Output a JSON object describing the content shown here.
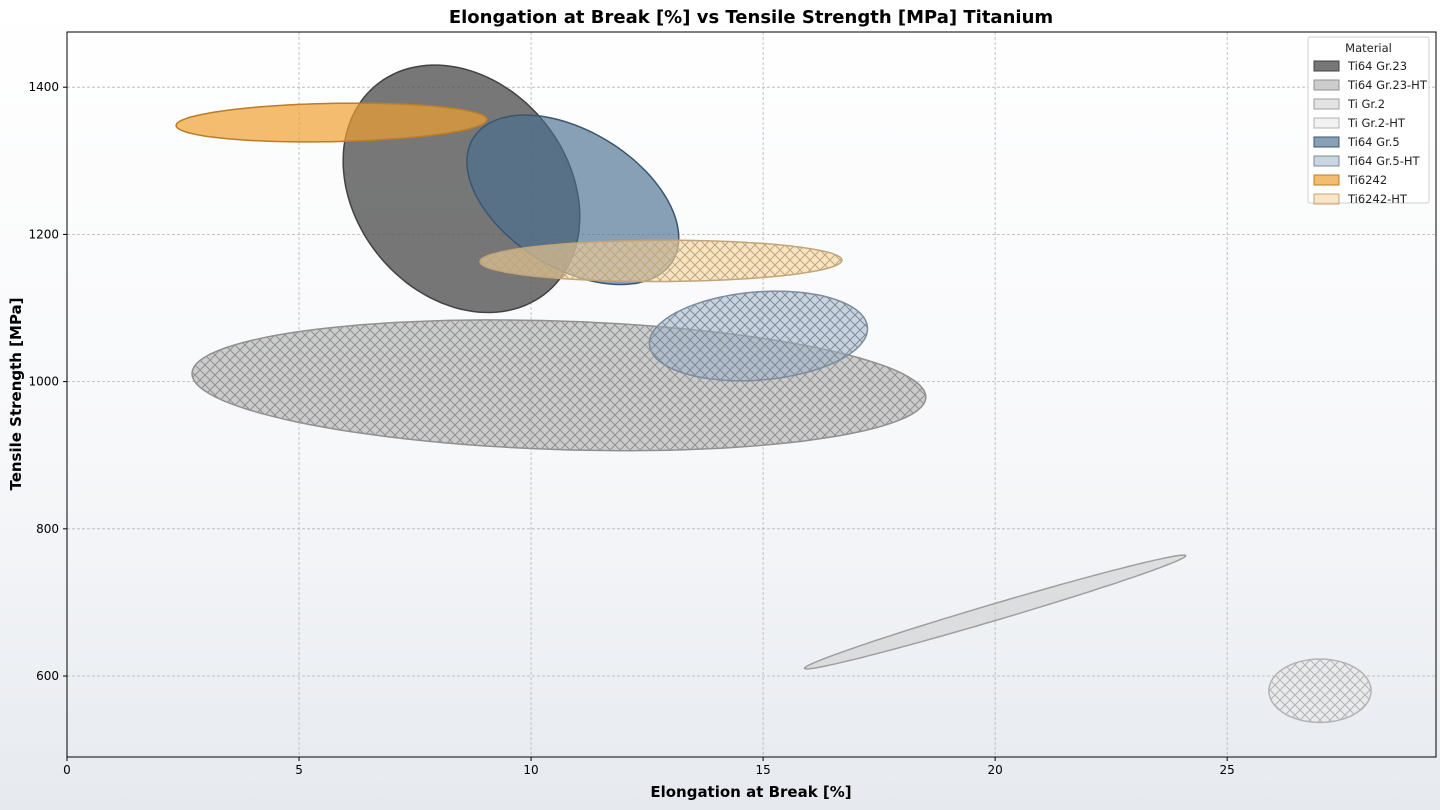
{
  "chart_data": {
    "type": "ellipse-scatter",
    "title": "Elongation at Break [%] vs Tensile Strength [MPa] Titanium",
    "xlabel": "Elongation at Break [%]",
    "ylabel": "Tensile Strength [MPa]",
    "xlim": [
      0,
      29.5
    ],
    "ylim": [
      490,
      1475
    ],
    "xticks": [
      0,
      5,
      10,
      15,
      20,
      25
    ],
    "yticks": [
      600,
      800,
      1000,
      1200,
      1400
    ],
    "grid": true,
    "legend": {
      "title": "Material",
      "placement": "top-right"
    },
    "series": [
      {
        "name": "Ti64 Gr.23",
        "color": "#555555",
        "opacity": 0.8,
        "hatch": false,
        "center": [
          8.5,
          1262
        ],
        "semi_axis_1": [
          -0.5,
          168
        ],
        "semi_axis_2": [
          2.5,
          -5
        ]
      },
      {
        "name": "Ti64 Gr.23-HT",
        "color": "#b8b8b8",
        "opacity": 0.7,
        "hatch": true,
        "center": [
          10.6,
          995
        ],
        "semi_axis_1": [
          7.9,
          -12
        ],
        "semi_axis_2": [
          -0.35,
          88
        ]
      },
      {
        "name": "Ti Gr.2",
        "color": "#cccccc",
        "opacity": 0.55,
        "hatch": false,
        "center": [
          20.0,
          687
        ],
        "semi_axis_1": [
          4.1,
          77
        ],
        "semi_axis_2": [
          -0.25,
          7
        ]
      },
      {
        "name": "Ti Gr.2-HT",
        "color": "#e6e6e6",
        "opacity": 0.5,
        "hatch": true,
        "center": [
          27.0,
          580
        ],
        "semi_axis_1": [
          1.1,
          0
        ],
        "semi_axis_2": [
          0,
          43
        ]
      },
      {
        "name": "Ti64 Gr.5",
        "color": "#4a6e8f",
        "opacity": 0.65,
        "hatch": false,
        "center": [
          10.9,
          1247
        ],
        "semi_axis_1": [
          2.0,
          -95
        ],
        "semi_axis_2": [
          -1.1,
          -65
        ]
      },
      {
        "name": "Ti64 Gr.5-HT",
        "color": "#9fb3c7",
        "opacity": 0.55,
        "hatch": true,
        "center": [
          14.9,
          1062
        ],
        "semi_axis_1": [
          2.35,
          10
        ],
        "semi_axis_2": [
          0,
          60
        ]
      },
      {
        "name": "Ti6242",
        "color": "#f0a030",
        "opacity": 0.7,
        "hatch": false,
        "center": [
          5.7,
          1352
        ],
        "semi_axis_1": [
          3.35,
          4
        ],
        "semi_axis_2": [
          0,
          26
        ]
      },
      {
        "name": "Ti6242-HT",
        "color": "#f7d49c",
        "opacity": 0.6,
        "hatch": true,
        "center": [
          12.8,
          1164
        ],
        "semi_axis_1": [
          3.9,
          1
        ],
        "semi_axis_2": [
          0,
          28
        ]
      }
    ]
  }
}
